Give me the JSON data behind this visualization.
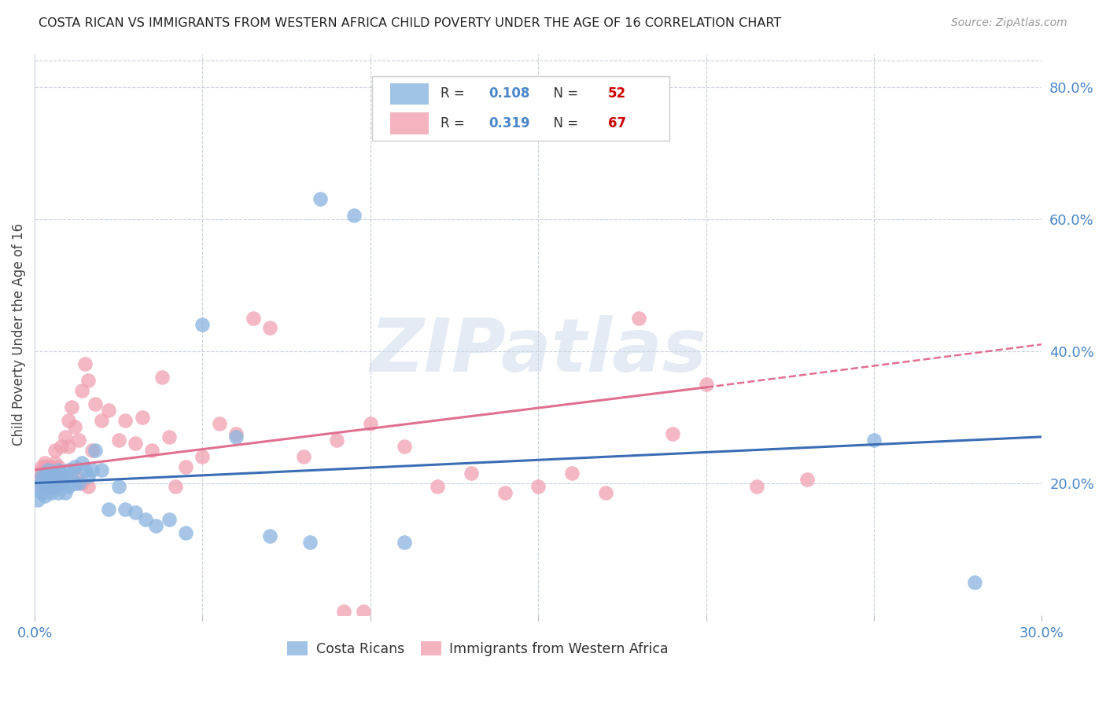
{
  "title": "COSTA RICAN VS IMMIGRANTS FROM WESTERN AFRICA CHILD POVERTY UNDER THE AGE OF 16 CORRELATION CHART",
  "source": "Source: ZipAtlas.com",
  "ylabel_label": "Child Poverty Under the Age of 16",
  "xlim": [
    0.0,
    0.3
  ],
  "ylim": [
    0.0,
    0.85
  ],
  "xticks": [
    0.0,
    0.05,
    0.1,
    0.15,
    0.2,
    0.25,
    0.3
  ],
  "ytick_labels_right": [
    "20.0%",
    "40.0%",
    "60.0%",
    "80.0%"
  ],
  "ytick_vals_right": [
    0.2,
    0.4,
    0.6,
    0.8
  ],
  "group1_color": "#8ab4e0",
  "group2_color": "#f0a0b0",
  "group1_label": "Costa Ricans",
  "group2_label": "Immigrants from Western Africa",
  "R1": "0.108",
  "N1": "52",
  "R2": "0.319",
  "N2": "67",
  "legend_R_color": "#4a86c8",
  "legend_N_color": "#cc0000",
  "line1_color": "#3b6db5",
  "line2_color": "#e07090",
  "background_color": "#ffffff",
  "watermark": "ZIPatlas",
  "line1_x0": 0.0,
  "line1_y0": 0.2,
  "line1_x1": 0.3,
  "line1_y1": 0.27,
  "line2_x0": 0.0,
  "line2_y0": 0.22,
  "line2_x1": 0.2,
  "line2_y1": 0.345,
  "line2_dash_x0": 0.2,
  "line2_dash_y0": 0.345,
  "line2_dash_x1": 0.3,
  "line2_dash_y1": 0.41,
  "group1_x": [
    0.001,
    0.001,
    0.002,
    0.002,
    0.002,
    0.003,
    0.003,
    0.003,
    0.003,
    0.004,
    0.004,
    0.004,
    0.005,
    0.005,
    0.005,
    0.006,
    0.006,
    0.007,
    0.007,
    0.008,
    0.008,
    0.009,
    0.009,
    0.01,
    0.01,
    0.011,
    0.012,
    0.012,
    0.013,
    0.014,
    0.015,
    0.016,
    0.017,
    0.018,
    0.02,
    0.022,
    0.025,
    0.027,
    0.03,
    0.033,
    0.036,
    0.04,
    0.045,
    0.05,
    0.06,
    0.07,
    0.082,
    0.085,
    0.095,
    0.11,
    0.25,
    0.28
  ],
  "group1_y": [
    0.195,
    0.175,
    0.21,
    0.185,
    0.2,
    0.195,
    0.21,
    0.18,
    0.2,
    0.195,
    0.205,
    0.22,
    0.185,
    0.195,
    0.215,
    0.195,
    0.21,
    0.185,
    0.22,
    0.2,
    0.215,
    0.185,
    0.205,
    0.195,
    0.22,
    0.215,
    0.2,
    0.225,
    0.2,
    0.23,
    0.22,
    0.21,
    0.22,
    0.25,
    0.22,
    0.16,
    0.195,
    0.16,
    0.155,
    0.145,
    0.135,
    0.145,
    0.125,
    0.44,
    0.27,
    0.12,
    0.11,
    0.63,
    0.605,
    0.11,
    0.265,
    0.05
  ],
  "group2_x": [
    0.001,
    0.001,
    0.002,
    0.002,
    0.003,
    0.003,
    0.003,
    0.004,
    0.004,
    0.005,
    0.005,
    0.006,
    0.006,
    0.007,
    0.008,
    0.008,
    0.009,
    0.01,
    0.01,
    0.011,
    0.012,
    0.013,
    0.014,
    0.015,
    0.016,
    0.017,
    0.018,
    0.02,
    0.022,
    0.025,
    0.027,
    0.03,
    0.032,
    0.035,
    0.038,
    0.04,
    0.042,
    0.045,
    0.05,
    0.055,
    0.06,
    0.065,
    0.07,
    0.08,
    0.09,
    0.1,
    0.11,
    0.12,
    0.13,
    0.14,
    0.15,
    0.16,
    0.17,
    0.18,
    0.19,
    0.2,
    0.215,
    0.23,
    0.092,
    0.098,
    0.003,
    0.004,
    0.006,
    0.008,
    0.012,
    0.014,
    0.016
  ],
  "group2_y": [
    0.215,
    0.2,
    0.225,
    0.21,
    0.215,
    0.23,
    0.2,
    0.22,
    0.2,
    0.225,
    0.21,
    0.23,
    0.2,
    0.225,
    0.255,
    0.21,
    0.27,
    0.295,
    0.255,
    0.315,
    0.285,
    0.265,
    0.34,
    0.38,
    0.355,
    0.25,
    0.32,
    0.295,
    0.31,
    0.265,
    0.295,
    0.26,
    0.3,
    0.25,
    0.36,
    0.27,
    0.195,
    0.225,
    0.24,
    0.29,
    0.275,
    0.45,
    0.435,
    0.24,
    0.265,
    0.29,
    0.255,
    0.195,
    0.215,
    0.185,
    0.195,
    0.215,
    0.185,
    0.45,
    0.275,
    0.35,
    0.195,
    0.205,
    0.005,
    0.005,
    0.225,
    0.225,
    0.25,
    0.2,
    0.215,
    0.2,
    0.195
  ]
}
